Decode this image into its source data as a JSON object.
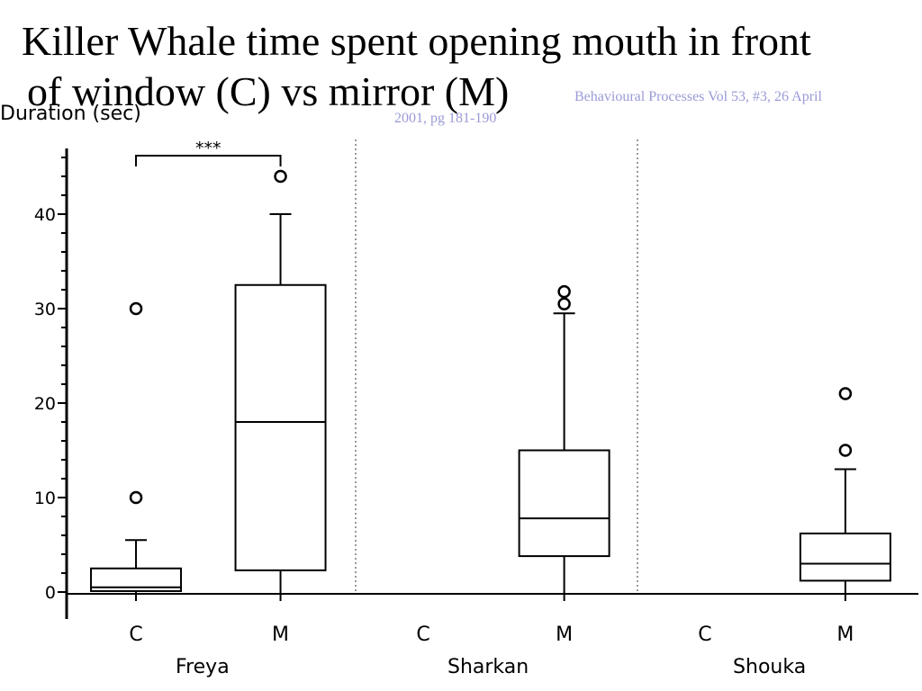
{
  "title_line1": "Killer Whale time spent opening mouth in front",
  "title_line2": "of window (C) vs mirror (M)",
  "citation_line1": "Behavioural Processes  Vol 53, #3, 26 April",
  "citation_line2": "2001, pg 181-190",
  "colors": {
    "citation": "#9a9ad8",
    "axis": "#000000",
    "divider": "#999999"
  },
  "chart_data": {
    "type": "boxplot",
    "ylabel": "Duration (sec)",
    "ylim": [
      0,
      46
    ],
    "yticks": [
      0,
      10,
      20,
      30,
      40
    ],
    "groups": [
      "Freya",
      "Sharkan",
      "Shouka"
    ],
    "categories": [
      "C",
      "M"
    ],
    "significance": {
      "group": "Freya",
      "between": [
        "C",
        "M"
      ],
      "label": "***"
    },
    "boxes": [
      {
        "group": "Freya",
        "cat": "C",
        "whisker_low": 0,
        "q1": 0.1,
        "median": 0.5,
        "q3": 2.5,
        "whisker_high": 5.5,
        "outliers": [
          10,
          30
        ]
      },
      {
        "group": "Freya",
        "cat": "M",
        "whisker_low": 0,
        "q1": 2.3,
        "median": 18,
        "q3": 32.5,
        "whisker_high": 40,
        "outliers": [
          44
        ]
      },
      {
        "group": "Sharkan",
        "cat": "M",
        "whisker_low": 0,
        "q1": 3.8,
        "median": 7.8,
        "q3": 15,
        "whisker_high": 29.5,
        "outliers": [
          30.5,
          31.8
        ]
      },
      {
        "group": "Shouka",
        "cat": "M",
        "whisker_low": 0,
        "q1": 1.2,
        "median": 3,
        "q3": 6.2,
        "whisker_high": 13,
        "outliers": [
          15,
          21
        ]
      }
    ]
  }
}
